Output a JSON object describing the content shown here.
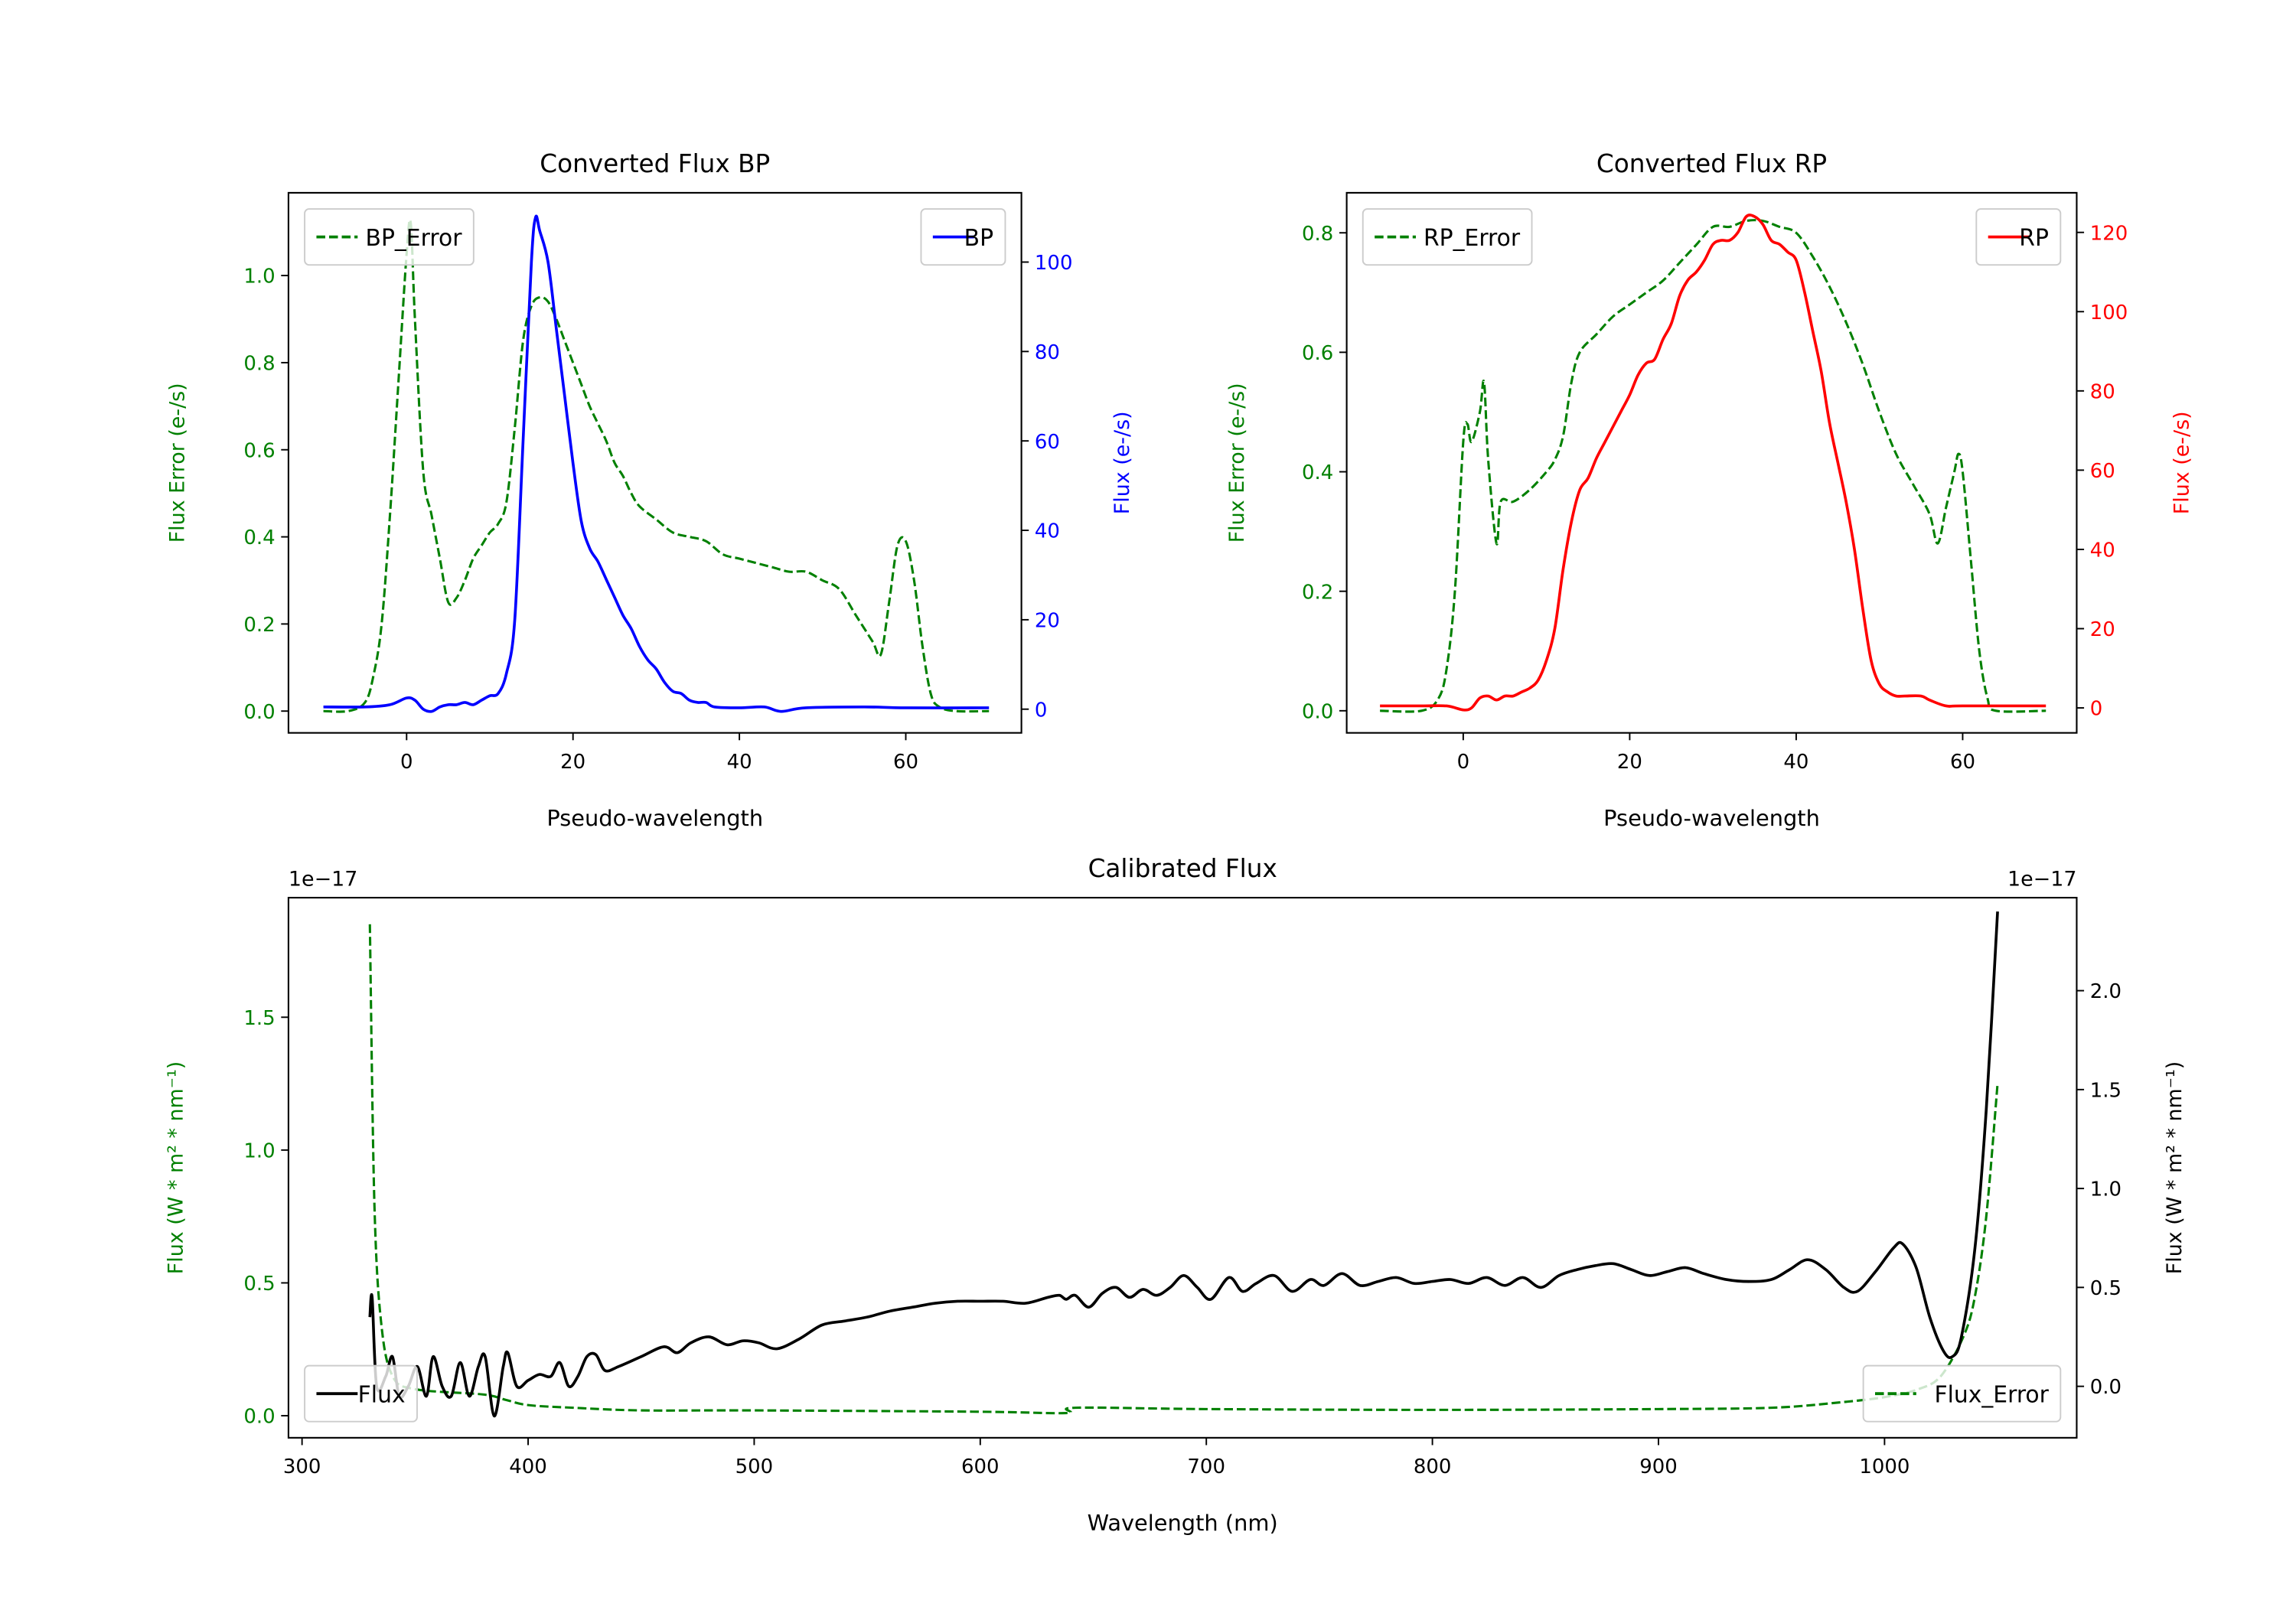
{
  "colors": {
    "green": "#008000",
    "blue": "#0000ff",
    "red": "#ff0000",
    "black": "#000000"
  },
  "chart_data": [
    {
      "type": "line",
      "title": "Converted Flux BP",
      "xlabel": "Pseudo-wavelength",
      "ylabel_left": "Flux Error (e-/s)",
      "ylabel_right": "Flux (e-/s)",
      "xlim": [
        -14.2,
        73.9
      ],
      "ylim_left": [
        -0.05,
        1.19
      ],
      "ylim_right": [
        -5.3,
        115.5
      ],
      "xticks": [
        0,
        20,
        40,
        60
      ],
      "yticks_left": [
        0.0,
        0.2,
        0.4,
        0.6,
        0.8,
        1.0
      ],
      "yticks_right": [
        0,
        20,
        40,
        60,
        80,
        100
      ],
      "xtick_labels": [
        "0",
        "20",
        "40",
        "60"
      ],
      "ytick_labels_left": [
        "0.0",
        "0.2",
        "0.4",
        "0.6",
        "0.8",
        "1.0"
      ],
      "ytick_labels_right": [
        "0",
        "20",
        "40",
        "60",
        "80",
        "100"
      ],
      "left_color": "#008000",
      "right_color": "#0000ff",
      "legends": [
        {
          "label": "BP_Error",
          "placement": "upper-left"
        },
        {
          "label": "BP",
          "placement": "upper-right"
        }
      ],
      "series": [
        {
          "name": "BP_Error",
          "axis": "left",
          "color": "#008000",
          "style": "dashed",
          "x": [
            -10,
            -7,
            -5,
            -4,
            -3,
            -2,
            -1,
            0,
            0.5,
            1,
            2,
            3,
            4,
            5,
            6,
            7,
            8,
            9,
            10,
            11,
            12,
            13,
            14,
            15,
            16,
            17,
            18,
            19,
            20,
            21,
            22,
            23,
            24,
            25,
            26,
            27,
            28,
            30,
            32,
            34,
            36,
            38,
            40,
            42,
            44,
            46,
            48,
            50,
            52,
            54,
            56,
            57,
            58,
            59,
            60,
            61,
            62,
            63,
            64,
            66,
            70
          ],
          "y": [
            0,
            0,
            0.02,
            0.08,
            0.2,
            0.45,
            0.75,
            1.05,
            1.12,
            0.9,
            0.55,
            0.45,
            0.35,
            0.25,
            0.26,
            0.3,
            0.35,
            0.38,
            0.41,
            0.43,
            0.48,
            0.65,
            0.85,
            0.93,
            0.95,
            0.94,
            0.9,
            0.85,
            0.8,
            0.75,
            0.7,
            0.66,
            0.62,
            0.57,
            0.54,
            0.5,
            0.47,
            0.44,
            0.41,
            0.4,
            0.39,
            0.36,
            0.35,
            0.34,
            0.33,
            0.32,
            0.32,
            0.3,
            0.28,
            0.22,
            0.16,
            0.13,
            0.25,
            0.38,
            0.39,
            0.3,
            0.15,
            0.04,
            0.01,
            0,
            0
          ]
        },
        {
          "name": "BP",
          "axis": "right",
          "color": "#0000ff",
          "style": "solid",
          "x": [
            -10,
            -5,
            -2,
            0,
            1,
            2,
            3,
            4,
            5,
            6,
            7,
            8,
            9,
            10,
            11,
            12,
            13,
            14,
            15,
            15.5,
            16,
            17,
            18,
            19,
            20,
            21,
            22,
            23,
            24,
            25,
            26,
            27,
            28,
            29,
            30,
            31,
            32,
            33,
            34,
            35,
            36,
            37,
            40,
            43,
            45,
            48,
            55,
            60,
            70
          ],
          "y": [
            0.5,
            0.5,
            1,
            2.5,
            2,
            0,
            -0.5,
            0.5,
            1,
            1,
            1.5,
            1,
            2,
            3,
            3.5,
            8,
            20,
            60,
            100,
            110,
            107,
            100,
            85,
            70,
            55,
            42,
            36,
            33,
            29,
            25,
            21,
            18,
            14,
            11,
            9,
            6,
            4,
            3.5,
            2,
            1.5,
            1.5,
            0.5,
            0.3,
            0.5,
            -0.5,
            0.3,
            0.5,
            0.3,
            0.3
          ]
        }
      ]
    },
    {
      "type": "line",
      "title": "Converted Flux RP",
      "xlabel": "Pseudo-wavelength",
      "ylabel_left": "Flux Error (e-/s)",
      "ylabel_right": "Flux (e-/s)",
      "xlim": [
        -14,
        73.7
      ],
      "ylim_left": [
        -0.037,
        0.867
      ],
      "ylim_right": [
        -6.3,
        130
      ],
      "xticks": [
        0,
        20,
        40,
        60
      ],
      "yticks_left": [
        0.0,
        0.2,
        0.4,
        0.6,
        0.8
      ],
      "yticks_right": [
        0,
        20,
        40,
        60,
        80,
        100,
        120
      ],
      "xtick_labels": [
        "0",
        "20",
        "40",
        "60"
      ],
      "ytick_labels_left": [
        "0.0",
        "0.2",
        "0.4",
        "0.6",
        "0.8"
      ],
      "ytick_labels_right": [
        "0",
        "20",
        "40",
        "60",
        "80",
        "100",
        "120"
      ],
      "left_color": "#008000",
      "right_color": "#ff0000",
      "legends": [
        {
          "label": "RP_Error",
          "placement": "upper-left"
        },
        {
          "label": "RP",
          "placement": "upper-right"
        }
      ],
      "series": [
        {
          "name": "RP_Error",
          "axis": "left",
          "color": "#008000",
          "style": "dashed",
          "x": [
            -10,
            -5,
            -3,
            -2,
            -1,
            0,
            0.5,
            1,
            2,
            2.5,
            3,
            4,
            4.5,
            6,
            8,
            10,
            11,
            12,
            13,
            14,
            16,
            18,
            20,
            22,
            24,
            26,
            28,
            30,
            32,
            34,
            36,
            38,
            40,
            42,
            44,
            46,
            48,
            50,
            52,
            54,
            56,
            57,
            58,
            59,
            59.5,
            60,
            61,
            62,
            63,
            64,
            70
          ],
          "y": [
            0,
            0,
            0.02,
            0.07,
            0.2,
            0.45,
            0.48,
            0.45,
            0.5,
            0.55,
            0.42,
            0.28,
            0.35,
            0.35,
            0.37,
            0.4,
            0.42,
            0.46,
            0.55,
            0.6,
            0.63,
            0.66,
            0.68,
            0.7,
            0.72,
            0.75,
            0.78,
            0.81,
            0.81,
            0.82,
            0.82,
            0.81,
            0.8,
            0.76,
            0.71,
            0.65,
            0.58,
            0.5,
            0.43,
            0.38,
            0.33,
            0.28,
            0.34,
            0.4,
            0.43,
            0.4,
            0.25,
            0.1,
            0.02,
            0,
            0
          ]
        },
        {
          "name": "RP",
          "axis": "right",
          "color": "#ff0000",
          "style": "solid",
          "x": [
            -10,
            -5,
            -2,
            0,
            1,
            2,
            3,
            4,
            5,
            6,
            7,
            8,
            9,
            10,
            11,
            12,
            13,
            14,
            15,
            16,
            17,
            18,
            19,
            20,
            21,
            22,
            23,
            24,
            25,
            26,
            27,
            28,
            29,
            30,
            31,
            32,
            33,
            34,
            35,
            36,
            37,
            38,
            39,
            40,
            41,
            42,
            43,
            44,
            45,
            46,
            47,
            48,
            49,
            50,
            51,
            52,
            53,
            55,
            56,
            58,
            60,
            70
          ],
          "y": [
            0.5,
            0.5,
            0.5,
            -0.5,
            0,
            2.5,
            3,
            2,
            3,
            3,
            4,
            5,
            7,
            12,
            20,
            35,
            47,
            55,
            58,
            63,
            67,
            71,
            75,
            79,
            84,
            87,
            88,
            93,
            97,
            104,
            108,
            110,
            113,
            117,
            118,
            118,
            120,
            124,
            124,
            122,
            118,
            117,
            115,
            113,
            105,
            95,
            85,
            72,
            62,
            52,
            40,
            25,
            12,
            6,
            4,
            3,
            3,
            3,
            2,
            0.5,
            0.5,
            0.5
          ]
        }
      ]
    },
    {
      "type": "line",
      "title": "Calibrated Flux",
      "xlabel": "Wavelength (nm)",
      "ylabel_left": "Flux (W * m² * nm⁻¹)",
      "ylabel_right": "Flux (W * m² * nm⁻¹)",
      "offset_left": "1e−17",
      "offset_right": "1e−17",
      "xlim": [
        294,
        1085
      ],
      "ylim_left": [
        -0.083,
        1.95
      ],
      "ylim_right": [
        -0.26,
        2.47
      ],
      "xticks": [
        300,
        400,
        500,
        600,
        700,
        800,
        900,
        1000
      ],
      "yticks_left": [
        0.0,
        0.5,
        1.0,
        1.5
      ],
      "yticks_right": [
        0.0,
        0.5,
        1.0,
        1.5,
        2.0
      ],
      "xtick_labels": [
        "300",
        "400",
        "500",
        "600",
        "700",
        "800",
        "900",
        "1000"
      ],
      "ytick_labels_left": [
        "0.0",
        "0.5",
        "1.0",
        "1.5"
      ],
      "ytick_labels_right": [
        "0.0",
        "0.5",
        "1.0",
        "1.5",
        "2.0"
      ],
      "left_color": "#008000",
      "right_color": "#000000",
      "legends": [
        {
          "label": "Flux",
          "placement": "lower-left"
        },
        {
          "label": "Flux_Error",
          "placement": "lower-right"
        }
      ],
      "series": [
        {
          "name": "Flux_Error",
          "axis": "left",
          "color": "#008000",
          "style": "dashed",
          "x": [
            330,
            332,
            335,
            340,
            350,
            380,
            390,
            400,
            420,
            450,
            500,
            600,
            638,
            642,
            700,
            800,
            900,
            950,
            980,
            1000,
            1015,
            1025,
            1035,
            1040,
            1045,
            1050
          ],
          "y": [
            1.85,
            0.8,
            0.35,
            0.15,
            0.1,
            0.08,
            0.06,
            0.04,
            0.03,
            0.02,
            0.02,
            0.015,
            0.01,
            0.03,
            0.025,
            0.022,
            0.025,
            0.03,
            0.05,
            0.07,
            0.1,
            0.15,
            0.3,
            0.45,
            0.75,
            1.25
          ]
        },
        {
          "name": "Flux",
          "axis": "right",
          "color": "#000000",
          "style": "solid",
          "x": [
            330,
            331,
            333,
            337,
            340,
            343,
            347,
            351,
            355,
            358,
            362,
            366,
            370,
            374,
            378,
            381,
            385,
            389,
            391,
            395,
            400,
            405,
            410,
            414,
            418,
            422,
            426,
            430,
            434,
            440,
            450,
            460,
            466,
            472,
            480,
            488,
            495,
            502,
            510,
            520,
            530,
            540,
            550,
            560,
            570,
            580,
            590,
            600,
            610,
            620,
            630,
            635,
            638,
            642,
            648,
            654,
            660,
            666,
            672,
            678,
            684,
            690,
            696,
            702,
            710,
            716,
            722,
            730,
            738,
            746,
            752,
            760,
            768,
            776,
            784,
            792,
            800,
            808,
            816,
            824,
            832,
            840,
            848,
            856,
            864,
            872,
            880,
            888,
            896,
            904,
            912,
            920,
            930,
            940,
            950,
            958,
            966,
            974,
            982,
            988,
            996,
            1004,
            1008,
            1014,
            1020,
            1026,
            1030,
            1034,
            1040,
            1045,
            1050
          ],
          "y": [
            0.35,
            0.45,
            0.0,
            0.05,
            0.15,
            -0.05,
            0.0,
            0.1,
            -0.05,
            0.15,
            0.0,
            -0.05,
            0.12,
            -0.05,
            0.1,
            0.15,
            -0.15,
            0.1,
            0.17,
            0.0,
            0.03,
            0.06,
            0.05,
            0.12,
            0.0,
            0.05,
            0.15,
            0.16,
            0.08,
            0.1,
            0.15,
            0.2,
            0.17,
            0.22,
            0.25,
            0.21,
            0.23,
            0.22,
            0.19,
            0.24,
            0.31,
            0.33,
            0.35,
            0.38,
            0.4,
            0.42,
            0.43,
            0.43,
            0.43,
            0.42,
            0.45,
            0.46,
            0.44,
            0.46,
            0.4,
            0.47,
            0.5,
            0.45,
            0.49,
            0.46,
            0.5,
            0.56,
            0.5,
            0.44,
            0.55,
            0.48,
            0.52,
            0.56,
            0.48,
            0.54,
            0.51,
            0.57,
            0.51,
            0.53,
            0.55,
            0.52,
            0.53,
            0.54,
            0.52,
            0.55,
            0.51,
            0.55,
            0.5,
            0.56,
            0.59,
            0.61,
            0.62,
            0.59,
            0.56,
            0.58,
            0.6,
            0.57,
            0.54,
            0.53,
            0.54,
            0.59,
            0.64,
            0.59,
            0.5,
            0.48,
            0.58,
            0.7,
            0.72,
            0.6,
            0.35,
            0.18,
            0.15,
            0.25,
            0.7,
            1.4,
            2.4
          ]
        }
      ]
    }
  ]
}
